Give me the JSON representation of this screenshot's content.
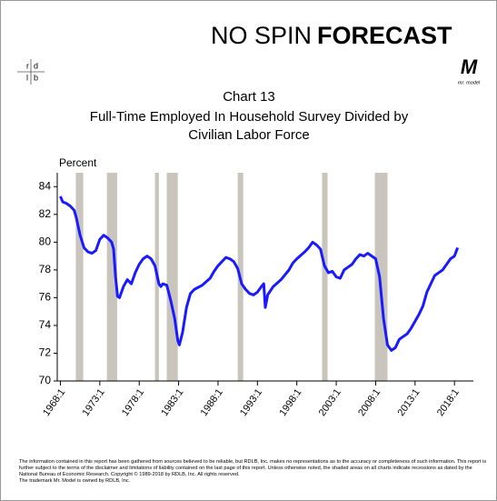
{
  "header": {
    "brand_left": "NO SPIN",
    "brand_right": "FORECAST",
    "logo_letters": [
      "r",
      "d",
      "l",
      "b"
    ],
    "logo_model": "M",
    "logo_model_caption": "mr. model"
  },
  "chart_data": {
    "type": "line",
    "title": "Chart 13",
    "subtitle": [
      "Full-Time Employed In Household Survey Divided by",
      "Civilian Labor Force"
    ],
    "y_label": "Percent",
    "xlim": [
      1967.6,
      2020.4
    ],
    "ylim": [
      70,
      85
    ],
    "yticks": [
      70,
      72,
      74,
      76,
      78,
      80,
      82,
      84
    ],
    "xticks": [
      {
        "value": 1968,
        "label": "1968:1"
      },
      {
        "value": 1973,
        "label": "1973:1"
      },
      {
        "value": 1978,
        "label": "1978:1"
      },
      {
        "value": 1983,
        "label": "1983:1"
      },
      {
        "value": 1988,
        "label": "1988:1"
      },
      {
        "value": 1993,
        "label": "1993:1"
      },
      {
        "value": 1998,
        "label": "1998:1"
      },
      {
        "value": 2003,
        "label": "2003:1"
      },
      {
        "value": 2008,
        "label": "2008:1"
      },
      {
        "value": 2013,
        "label": "2013:1"
      },
      {
        "value": 2018,
        "label": "2018:1"
      }
    ],
    "recessions": [
      [
        1969.95,
        1970.9
      ],
      [
        1973.9,
        1975.2
      ],
      [
        1980.0,
        1980.5
      ],
      [
        1981.5,
        1982.9
      ],
      [
        1990.5,
        1991.2
      ],
      [
        2001.2,
        2001.9
      ],
      [
        2007.9,
        2009.5
      ]
    ],
    "recession_color": "#c9c5bd",
    "x": [
      1968.0,
      1968.3,
      1968.75,
      1969.25,
      1969.75,
      1970.0,
      1970.5,
      1971.0,
      1971.5,
      1972.0,
      1972.5,
      1973.0,
      1973.5,
      1974.0,
      1974.5,
      1974.75,
      1975.0,
      1975.25,
      1975.5,
      1976.0,
      1976.5,
      1977.0,
      1977.5,
      1978.0,
      1978.5,
      1979.0,
      1979.5,
      1980.0,
      1980.5,
      1980.75,
      1981.0,
      1981.5,
      1982.0,
      1982.5,
      1982.9,
      1983.1,
      1983.5,
      1984.0,
      1984.5,
      1985.0,
      1986.0,
      1987.0,
      1987.5,
      1988.0,
      1988.5,
      1989.0,
      1989.5,
      1990.0,
      1990.5,
      1991.0,
      1991.5,
      1992.0,
      1992.5,
      1993.0,
      1993.5,
      1993.8,
      1994.0,
      1994.3,
      1995.0,
      1996.0,
      1997.0,
      1997.5,
      1998.0,
      1999.0,
      1999.5,
      2000.0,
      2000.5,
      2001.0,
      2001.5,
      2002.0,
      2002.5,
      2003.0,
      2003.5,
      2004.0,
      2004.5,
      2005.0,
      2005.5,
      2006.0,
      2006.5,
      2007.0,
      2007.5,
      2008.0,
      2008.5,
      2009.0,
      2009.5,
      2010.0,
      2010.5,
      2011.0,
      2011.5,
      2012.0,
      2012.5,
      2013.0,
      2013.5,
      2014.0,
      2014.5,
      2015.0,
      2015.5,
      2016.0,
      2016.5,
      2017.0,
      2017.5,
      2018.0,
      2018.4
    ],
    "series": [
      {
        "color": "#1a1aff",
        "values": [
          83.3,
          82.9,
          82.8,
          82.6,
          82.3,
          81.8,
          80.5,
          79.6,
          79.3,
          79.2,
          79.4,
          80.2,
          80.5,
          80.3,
          80.0,
          79.5,
          77.5,
          76.1,
          76.0,
          76.8,
          77.3,
          77.0,
          77.8,
          78.4,
          78.8,
          79.0,
          78.8,
          78.3,
          77.0,
          76.8,
          77.0,
          76.9,
          75.8,
          74.5,
          72.9,
          72.6,
          73.5,
          75.3,
          76.3,
          76.6,
          76.9,
          77.4,
          77.9,
          78.3,
          78.6,
          78.9,
          78.8,
          78.6,
          78.1,
          77.0,
          76.6,
          76.3,
          76.2,
          76.4,
          76.8,
          77.0,
          75.3,
          76.2,
          76.8,
          77.3,
          78.0,
          78.5,
          78.8,
          79.3,
          79.6,
          80.0,
          79.8,
          79.5,
          78.3,
          77.8,
          77.9,
          77.5,
          77.4,
          78.0,
          78.2,
          78.4,
          78.8,
          79.1,
          79.0,
          79.2,
          79.0,
          78.8,
          77.5,
          74.5,
          72.6,
          72.2,
          72.4,
          73.0,
          73.2,
          73.4,
          73.8,
          74.3,
          74.8,
          75.4,
          76.4,
          77.0,
          77.6,
          77.8,
          78.0,
          78.4,
          78.8,
          79.0,
          79.6
        ]
      }
    ]
  },
  "footer": [
    "The information contained in this report has been gathered from sources believed to be reliable, but RDLB, Inc. makes no representations as to the accuracy or completeness of such information. This report is further subject to the terms of the disclaimer and limitations of liability contained on the last page of this report. Unless otherwise noted, the shaded areas on all charts indicate recessions as dated by the National Bureau of Economic Research. Copyright © 1989-2018 by RDLB, Inc. All rights reserved.",
    "The trademark Mr. Model is owned by RDLB, Inc."
  ]
}
